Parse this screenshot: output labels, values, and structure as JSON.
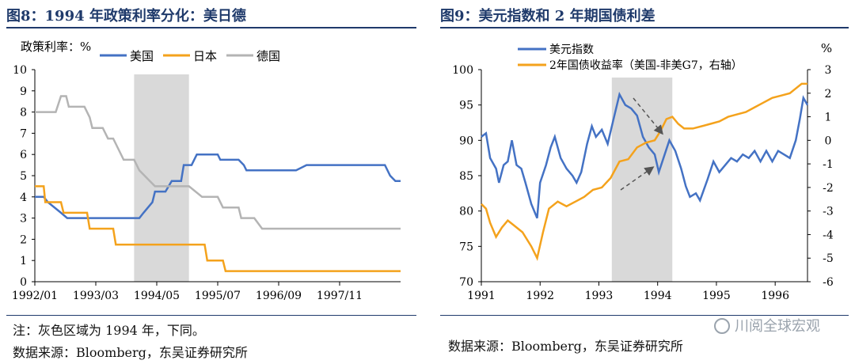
{
  "panels": {
    "left_title": "图8：1994 年政策利率分化：美日德",
    "right_title": "图9：美元指数和 2 年期国债利差",
    "left_note": "注：灰色区域为 1994 年，下同。",
    "left_source": "数据来源：Bloomberg，东吴证券研究所",
    "right_source": "数据来源：Bloomberg，东吴证券研究所",
    "watermark": "川阅全球宏观"
  },
  "chart_data": [
    {
      "type": "line",
      "ylabel": "政策利率：%",
      "ylim": [
        0,
        10
      ],
      "y_ticks": [
        "0",
        "1",
        "2",
        "3",
        "4",
        "5",
        "6",
        "7",
        "8",
        "9",
        "10"
      ],
      "x_ticks": [
        "1992/01",
        "1993/03",
        "1994/05",
        "1995/07",
        "1996/09",
        "1997/11"
      ],
      "x_tick_positions": [
        1992.0,
        1993.1667,
        1994.3333,
        1995.5,
        1996.6667,
        1997.8333
      ],
      "xlim": [
        1992.0,
        1999.0
      ],
      "shaded_range": [
        1993.9,
        1994.95
      ],
      "legend_position": "top",
      "colors": {
        "us": "#4472c4",
        "jp": "#f4a21c",
        "de": "#b4b4b4",
        "shade": "#d9d9d9"
      },
      "series": [
        {
          "name": "美国",
          "color": "#4472c4",
          "points": [
            [
              1992.0,
              4.0
            ],
            [
              1992.17,
              4.0
            ],
            [
              1992.25,
              3.75
            ],
            [
              1992.5,
              3.25
            ],
            [
              1992.62,
              3.0
            ],
            [
              1993.0,
              3.0
            ],
            [
              1994.0,
              3.0
            ],
            [
              1994.08,
              3.25
            ],
            [
              1994.25,
              3.75
            ],
            [
              1994.3,
              4.25
            ],
            [
              1994.5,
              4.25
            ],
            [
              1994.62,
              4.75
            ],
            [
              1994.8,
              4.75
            ],
            [
              1994.85,
              5.5
            ],
            [
              1995.0,
              5.5
            ],
            [
              1995.1,
              6.0
            ],
            [
              1995.5,
              6.0
            ],
            [
              1995.55,
              5.75
            ],
            [
              1995.9,
              5.75
            ],
            [
              1996.0,
              5.5
            ],
            [
              1996.05,
              5.25
            ],
            [
              1997.0,
              5.25
            ],
            [
              1997.2,
              5.5
            ],
            [
              1998.7,
              5.5
            ],
            [
              1998.8,
              5.0
            ],
            [
              1998.9,
              4.75
            ],
            [
              1999.0,
              4.75
            ]
          ]
        },
        {
          "name": "日本",
          "color": "#f4a21c",
          "points": [
            [
              1992.0,
              4.5
            ],
            [
              1992.17,
              4.5
            ],
            [
              1992.2,
              3.75
            ],
            [
              1992.5,
              3.75
            ],
            [
              1992.55,
              3.25
            ],
            [
              1993.0,
              3.25
            ],
            [
              1993.05,
              2.5
            ],
            [
              1993.5,
              2.5
            ],
            [
              1993.55,
              1.75
            ],
            [
              1995.25,
              1.75
            ],
            [
              1995.3,
              1.0
            ],
            [
              1995.6,
              1.0
            ],
            [
              1995.65,
              0.5
            ],
            [
              1999.0,
              0.5
            ]
          ]
        },
        {
          "name": "德国",
          "color": "#b4b4b4",
          "points": [
            [
              1992.0,
              8.0
            ],
            [
              1992.4,
              8.0
            ],
            [
              1992.5,
              8.75
            ],
            [
              1992.6,
              8.75
            ],
            [
              1992.65,
              8.25
            ],
            [
              1992.95,
              8.25
            ],
            [
              1993.05,
              7.75
            ],
            [
              1993.1,
              7.25
            ],
            [
              1993.3,
              7.25
            ],
            [
              1993.4,
              6.75
            ],
            [
              1993.5,
              6.75
            ],
            [
              1993.6,
              6.25
            ],
            [
              1993.7,
              5.75
            ],
            [
              1993.9,
              5.75
            ],
            [
              1994.0,
              5.25
            ],
            [
              1994.1,
              5.0
            ],
            [
              1994.2,
              4.75
            ],
            [
              1994.3,
              4.5
            ],
            [
              1994.95,
              4.5
            ],
            [
              1995.2,
              4.0
            ],
            [
              1995.5,
              4.0
            ],
            [
              1995.6,
              3.5
            ],
            [
              1995.9,
              3.5
            ],
            [
              1995.95,
              3.0
            ],
            [
              1996.2,
              3.0
            ],
            [
              1996.35,
              2.5
            ],
            [
              1999.0,
              2.5
            ]
          ]
        }
      ]
    },
    {
      "type": "line",
      "ylabel_right": "%",
      "ylim": [
        70,
        100
      ],
      "ylim_right": [
        -6,
        3
      ],
      "y_ticks": [
        "70",
        "75",
        "80",
        "85",
        "90",
        "95",
        "100"
      ],
      "y_ticks_right": [
        "-6",
        "-5",
        "-4",
        "-3",
        "-2",
        "-1",
        "0",
        "1",
        "2",
        "3"
      ],
      "x_ticks": [
        "1991",
        "1992",
        "1993",
        "1994",
        "1995",
        "1996"
      ],
      "xlim": [
        1991.0,
        1996.55
      ],
      "shaded_range": [
        1993.22,
        1994.25
      ],
      "legend_position": "top-left",
      "colors": {
        "usd": "#4472c4",
        "spread": "#f4a21c",
        "shade": "#d9d9d9",
        "arrow": "#555555"
      },
      "series": [
        {
          "name": "美元指数",
          "axis": "left",
          "color": "#4472c4",
          "points": [
            [
              1991.0,
              90.5
            ],
            [
              1991.08,
              91.0
            ],
            [
              1991.15,
              87.5
            ],
            [
              1991.25,
              86.0
            ],
            [
              1991.3,
              84.0
            ],
            [
              1991.38,
              86.5
            ],
            [
              1991.45,
              87.0
            ],
            [
              1991.52,
              90.0
            ],
            [
              1991.6,
              86.5
            ],
            [
              1991.68,
              86.0
            ],
            [
              1991.75,
              84.0
            ],
            [
              1991.85,
              81.0
            ],
            [
              1991.95,
              79.0
            ],
            [
              1992.0,
              84.0
            ],
            [
              1992.1,
              86.5
            ],
            [
              1992.18,
              89.0
            ],
            [
              1992.25,
              90.5
            ],
            [
              1992.35,
              87.5
            ],
            [
              1992.45,
              86.0
            ],
            [
              1992.55,
              85.0
            ],
            [
              1992.62,
              84.0
            ],
            [
              1992.7,
              85.5
            ],
            [
              1992.8,
              89.5
            ],
            [
              1992.88,
              92.0
            ],
            [
              1992.95,
              90.5
            ],
            [
              1993.05,
              91.5
            ],
            [
              1993.15,
              89.5
            ],
            [
              1993.25,
              93.0
            ],
            [
              1993.35,
              96.5
            ],
            [
              1993.45,
              95.0
            ],
            [
              1993.55,
              94.5
            ],
            [
              1993.65,
              93.5
            ],
            [
              1993.75,
              90.5
            ],
            [
              1993.85,
              89.0
            ],
            [
              1993.95,
              88.0
            ],
            [
              1994.02,
              85.5
            ],
            [
              1994.1,
              87.5
            ],
            [
              1994.2,
              90.0
            ],
            [
              1994.3,
              88.5
            ],
            [
              1994.4,
              86.0
            ],
            [
              1994.48,
              83.5
            ],
            [
              1994.55,
              82.0
            ],
            [
              1994.65,
              82.5
            ],
            [
              1994.72,
              81.5
            ],
            [
              1994.85,
              84.5
            ],
            [
              1994.95,
              87.0
            ],
            [
              1995.05,
              85.5
            ],
            [
              1995.15,
              86.5
            ],
            [
              1995.25,
              87.5
            ],
            [
              1995.35,
              87.0
            ],
            [
              1995.45,
              88.0
            ],
            [
              1995.55,
              87.5
            ],
            [
              1995.65,
              88.5
            ],
            [
              1995.75,
              87.0
            ],
            [
              1995.85,
              88.5
            ],
            [
              1995.95,
              87.0
            ],
            [
              1996.05,
              88.5
            ],
            [
              1996.15,
              88.0
            ],
            [
              1996.25,
              87.5
            ],
            [
              1996.35,
              90.0
            ],
            [
              1996.42,
              93.0
            ],
            [
              1996.48,
              96.0
            ],
            [
              1996.55,
              95.0
            ]
          ]
        },
        {
          "name": "2年国债收益率（美国-非美G7，右轴）",
          "axis": "right",
          "color": "#f4a21c",
          "points": [
            [
              1991.0,
              -2.7
            ],
            [
              1991.08,
              -2.9
            ],
            [
              1991.15,
              -3.5
            ],
            [
              1991.25,
              -4.1
            ],
            [
              1991.35,
              -3.7
            ],
            [
              1991.45,
              -3.4
            ],
            [
              1991.55,
              -3.6
            ],
            [
              1991.7,
              -3.9
            ],
            [
              1991.85,
              -4.5
            ],
            [
              1991.95,
              -5.0
            ],
            [
              1992.05,
              -3.9
            ],
            [
              1992.15,
              -2.9
            ],
            [
              1992.3,
              -2.6
            ],
            [
              1992.45,
              -2.8
            ],
            [
              1992.6,
              -2.6
            ],
            [
              1992.75,
              -2.4
            ],
            [
              1992.9,
              -2.1
            ],
            [
              1993.05,
              -2.0
            ],
            [
              1993.2,
              -1.6
            ],
            [
              1993.35,
              -0.9
            ],
            [
              1993.5,
              -0.8
            ],
            [
              1993.65,
              -0.3
            ],
            [
              1993.8,
              -0.1
            ],
            [
              1993.95,
              0.0
            ],
            [
              1994.05,
              0.4
            ],
            [
              1994.15,
              0.9
            ],
            [
              1994.25,
              1.0
            ],
            [
              1994.35,
              0.7
            ],
            [
              1994.45,
              0.5
            ],
            [
              1994.6,
              0.5
            ],
            [
              1994.75,
              0.6
            ],
            [
              1994.9,
              0.7
            ],
            [
              1995.05,
              0.8
            ],
            [
              1995.2,
              1.0
            ],
            [
              1995.35,
              1.1
            ],
            [
              1995.5,
              1.2
            ],
            [
              1995.65,
              1.4
            ],
            [
              1995.8,
              1.6
            ],
            [
              1995.95,
              1.8
            ],
            [
              1996.1,
              1.9
            ],
            [
              1996.25,
              2.0
            ],
            [
              1996.35,
              2.2
            ],
            [
              1996.45,
              2.4
            ],
            [
              1996.55,
              2.4
            ]
          ]
        }
      ]
    }
  ]
}
